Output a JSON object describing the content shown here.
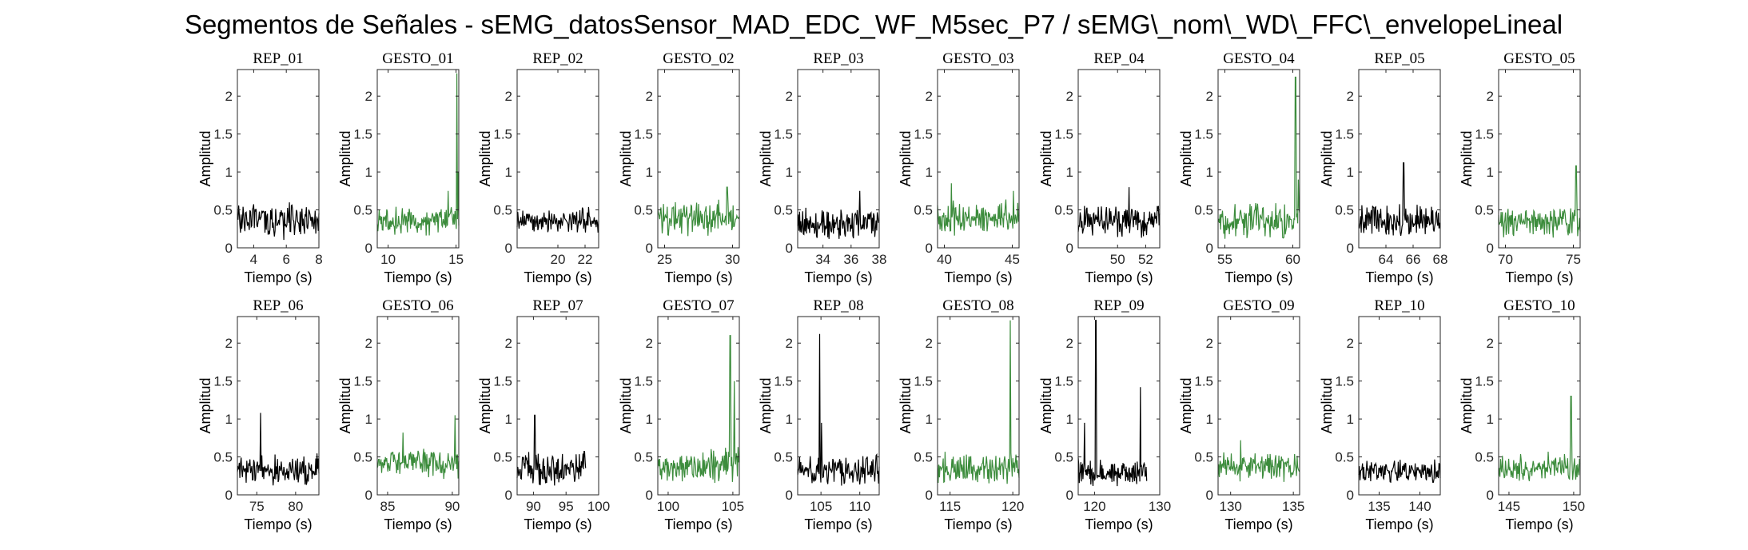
{
  "figure": {
    "title": "Segmentos de Señales - sEMG_datosSensor_MAD_EDC_WF_M5sec_P7 / sEMG\\_nom\\_WD\\_FFC\\_envelopeLineal"
  },
  "colors": {
    "rep": "#000000",
    "gesto": "#3c8c3c"
  },
  "chart_data": [
    {
      "type": "line",
      "title": "REP_01",
      "xlabel": "Tiempo (s)",
      "ylabel": "Amplitud",
      "xlim": [
        3,
        8
      ],
      "ylim": [
        0,
        2.35
      ],
      "xticks": [
        4,
        6,
        8
      ],
      "yticks": [
        0,
        0.5,
        1,
        1.5,
        2
      ],
      "series": [
        {
          "x": [
            3,
            8
          ],
          "amplitude_range": [
            0.1,
            0.6
          ],
          "spikes": [
            [
              6.2,
              0.6
            ]
          ]
        }
      ]
    },
    {
      "type": "line",
      "title": "GESTO_01",
      "xlabel": "Tiempo (s)",
      "ylabel": "Amplitud",
      "xlim": [
        9.2,
        15.2
      ],
      "ylim": [
        0,
        2.35
      ],
      "xticks": [
        10,
        15
      ],
      "yticks": [
        0,
        0.5,
        1,
        1.5,
        2
      ],
      "series": [
        {
          "x": [
            9.2,
            15.2
          ],
          "amplitude_range": [
            0.15,
            0.55
          ],
          "spikes": [
            [
              14.4,
              0.75
            ],
            [
              15.05,
              2.3
            ],
            [
              15.15,
              1.0
            ]
          ]
        }
      ]
    },
    {
      "type": "line",
      "title": "REP_02",
      "xlabel": "Tiempo (s)",
      "ylabel": "Amplitud",
      "xlim": [
        17,
        23
      ],
      "ylim": [
        0,
        2.35
      ],
      "xticks": [
        20,
        22
      ],
      "yticks": [
        0,
        0.5,
        1,
        1.5,
        2
      ],
      "series": [
        {
          "x": [
            17,
            23
          ],
          "amplitude_range": [
            0.15,
            0.55
          ],
          "spikes": []
        }
      ]
    },
    {
      "type": "line",
      "title": "GESTO_02",
      "xlabel": "Tiempo (s)",
      "ylabel": "Amplitud",
      "xlim": [
        24.5,
        30.5
      ],
      "ylim": [
        0,
        2.35
      ],
      "xticks": [
        25,
        30
      ],
      "yticks": [
        0,
        0.5,
        1,
        1.5,
        2
      ],
      "series": [
        {
          "x": [
            24.5,
            30.5
          ],
          "amplitude_range": [
            0.15,
            0.65
          ],
          "spikes": [
            [
              29.6,
              0.8
            ]
          ]
        }
      ]
    },
    {
      "type": "line",
      "title": "REP_03",
      "xlabel": "Tiempo (s)",
      "ylabel": "Amplitud",
      "xlim": [
        32.2,
        38
      ],
      "ylim": [
        0,
        2.35
      ],
      "xticks": [
        34,
        36,
        38
      ],
      "yticks": [
        0,
        0.5,
        1,
        1.5,
        2
      ],
      "series": [
        {
          "x": [
            32.2,
            38
          ],
          "amplitude_range": [
            0.1,
            0.55
          ],
          "spikes": [
            [
              36.6,
              0.75
            ]
          ]
        }
      ]
    },
    {
      "type": "line",
      "title": "GESTO_03",
      "xlabel": "Tiempo (s)",
      "ylabel": "Amplitud",
      "xlim": [
        39.5,
        45.5
      ],
      "ylim": [
        0,
        2.35
      ],
      "xticks": [
        40,
        45
      ],
      "yticks": [
        0,
        0.5,
        1,
        1.5,
        2
      ],
      "series": [
        {
          "x": [
            39.5,
            45.5
          ],
          "amplitude_range": [
            0.15,
            0.65
          ],
          "spikes": [
            [
              40.5,
              0.85
            ],
            [
              45.1,
              0.75
            ]
          ]
        }
      ]
    },
    {
      "type": "line",
      "title": "REP_04",
      "xlabel": "Tiempo (s)",
      "ylabel": "Amplitud",
      "xlim": [
        47.2,
        53
      ],
      "ylim": [
        0,
        2.35
      ],
      "xticks": [
        50,
        52
      ],
      "yticks": [
        0,
        0.5,
        1,
        1.5,
        2
      ],
      "series": [
        {
          "x": [
            47.2,
            53
          ],
          "amplitude_range": [
            0.1,
            0.6
          ],
          "spikes": [
            [
              50.8,
              0.8
            ]
          ]
        }
      ]
    },
    {
      "type": "line",
      "title": "GESTO_04",
      "xlabel": "Tiempo (s)",
      "ylabel": "Amplitud",
      "xlim": [
        54.5,
        60.5
      ],
      "ylim": [
        0,
        2.35
      ],
      "xticks": [
        55,
        60
      ],
      "yticks": [
        0,
        0.5,
        1,
        1.5,
        2
      ],
      "series": [
        {
          "x": [
            54.5,
            60.5
          ],
          "amplitude_range": [
            0.1,
            0.65
          ],
          "spikes": [
            [
              60.2,
              2.25
            ],
            [
              60.4,
              0.9
            ]
          ]
        }
      ]
    },
    {
      "type": "line",
      "title": "REP_05",
      "xlabel": "Tiempo (s)",
      "ylabel": "Amplitud",
      "xlim": [
        62,
        68
      ],
      "ylim": [
        0,
        2.35
      ],
      "xticks": [
        64,
        66,
        68
      ],
      "yticks": [
        0,
        0.5,
        1,
        1.5,
        2
      ],
      "series": [
        {
          "x": [
            62,
            68
          ],
          "amplitude_range": [
            0.1,
            0.6
          ],
          "spikes": [
            [
              65.3,
              1.12
            ]
          ]
        }
      ]
    },
    {
      "type": "line",
      "title": "GESTO_05",
      "xlabel": "Tiempo (s)",
      "ylabel": "Amplitud",
      "xlim": [
        69.5,
        75.5
      ],
      "ylim": [
        0,
        2.35
      ],
      "xticks": [
        70,
        75
      ],
      "yticks": [
        0,
        0.5,
        1,
        1.5,
        2
      ],
      "series": [
        {
          "x": [
            69.5,
            75.5
          ],
          "amplitude_range": [
            0.1,
            0.55
          ],
          "spikes": [
            [
              75.2,
              1.08
            ]
          ]
        }
      ]
    },
    {
      "type": "line",
      "title": "REP_06",
      "xlabel": "Tiempo (s)",
      "ylabel": "Amplitud",
      "xlim": [
        72.5,
        83
      ],
      "ylim": [
        0,
        2.35
      ],
      "xticks": [
        75,
        80
      ],
      "yticks": [
        0,
        0.5,
        1,
        1.5,
        2
      ],
      "series": [
        {
          "x": [
            72.5,
            83
          ],
          "amplitude_range": [
            0.1,
            0.55
          ],
          "spikes": [
            [
              75.5,
              1.08
            ]
          ]
        }
      ]
    },
    {
      "type": "line",
      "title": "GESTO_06",
      "xlabel": "Tiempo (s)",
      "ylabel": "Amplitud",
      "xlim": [
        84.2,
        90.5
      ],
      "ylim": [
        0,
        2.35
      ],
      "xticks": [
        85,
        90
      ],
      "yticks": [
        0,
        0.5,
        1,
        1.5,
        2
      ],
      "series": [
        {
          "x": [
            84.2,
            90.5
          ],
          "amplitude_range": [
            0.2,
            0.65
          ],
          "spikes": [
            [
              86.2,
              0.82
            ],
            [
              90.2,
              1.05
            ]
          ]
        }
      ]
    },
    {
      "type": "line",
      "title": "REP_07",
      "xlabel": "Tiempo (s)",
      "ylabel": "Amplitud",
      "xlim": [
        87.5,
        100
      ],
      "ylim": [
        0,
        2.35
      ],
      "xticks": [
        90,
        95,
        100
      ],
      "yticks": [
        0,
        0.5,
        1,
        1.5,
        2
      ],
      "series": [
        {
          "x": [
            87.5,
            98
          ],
          "amplitude_range": [
            0.1,
            0.6
          ],
          "spikes": [
            [
              90.2,
              1.05
            ]
          ]
        }
      ]
    },
    {
      "type": "line",
      "title": "GESTO_07",
      "xlabel": "Tiempo (s)",
      "ylabel": "Amplitud",
      "xlim": [
        99.2,
        105.5
      ],
      "ylim": [
        0,
        2.35
      ],
      "xticks": [
        100,
        105
      ],
      "yticks": [
        0,
        0.5,
        1,
        1.5,
        2
      ],
      "series": [
        {
          "x": [
            99.2,
            105.5
          ],
          "amplitude_range": [
            0.1,
            0.65
          ],
          "spikes": [
            [
              104.8,
              2.1
            ],
            [
              105.1,
              1.5
            ]
          ]
        }
      ]
    },
    {
      "type": "line",
      "title": "REP_08",
      "xlabel": "Tiempo (s)",
      "ylabel": "Amplitud",
      "xlim": [
        102,
        112.5
      ],
      "ylim": [
        0,
        2.35
      ],
      "xticks": [
        105,
        110
      ],
      "yticks": [
        0,
        0.5,
        1,
        1.5,
        2
      ],
      "series": [
        {
          "x": [
            102,
            112.5
          ],
          "amplitude_range": [
            0.1,
            0.55
          ],
          "spikes": [
            [
              104.8,
              2.12
            ],
            [
              105.1,
              0.95
            ]
          ]
        }
      ]
    },
    {
      "type": "line",
      "title": "GESTO_08",
      "xlabel": "Tiempo (s)",
      "ylabel": "Amplitud",
      "xlim": [
        114,
        120.5
      ],
      "ylim": [
        0,
        2.35
      ],
      "xticks": [
        115,
        120
      ],
      "yticks": [
        0,
        0.5,
        1,
        1.5,
        2
      ],
      "series": [
        {
          "x": [
            114,
            120.5
          ],
          "amplitude_range": [
            0.1,
            0.6
          ],
          "spikes": [
            [
              119.8,
              2.3
            ]
          ]
        }
      ]
    },
    {
      "type": "line",
      "title": "REP_09",
      "xlabel": "Tiempo (s)",
      "ylabel": "Amplitud",
      "xlim": [
        117.5,
        130
      ],
      "ylim": [
        0,
        2.35
      ],
      "xticks": [
        120,
        130
      ],
      "yticks": [
        0,
        0.5,
        1,
        1.5,
        2
      ],
      "series": [
        {
          "x": [
            117.5,
            128
          ],
          "amplitude_range": [
            0.1,
            0.5
          ],
          "spikes": [
            [
              118.5,
              0.95
            ],
            [
              120.2,
              2.3
            ],
            [
              127,
              1.42
            ]
          ]
        }
      ]
    },
    {
      "type": "line",
      "title": "GESTO_09",
      "xlabel": "Tiempo (s)",
      "ylabel": "Amplitud",
      "xlim": [
        129,
        135.5
      ],
      "ylim": [
        0,
        2.35
      ],
      "xticks": [
        130,
        135
      ],
      "yticks": [
        0,
        0.5,
        1,
        1.5,
        2
      ],
      "series": [
        {
          "x": [
            129,
            135.5
          ],
          "amplitude_range": [
            0.15,
            0.6
          ],
          "spikes": [
            [
              130.8,
              0.72
            ]
          ]
        }
      ]
    },
    {
      "type": "line",
      "title": "REP_10",
      "xlabel": "Tiempo (s)",
      "ylabel": "Amplitud",
      "xlim": [
        132.5,
        142.5
      ],
      "ylim": [
        0,
        2.35
      ],
      "xticks": [
        135,
        140
      ],
      "yticks": [
        0,
        0.5,
        1,
        1.5,
        2
      ],
      "series": [
        {
          "x": [
            132.5,
            142.5
          ],
          "amplitude_range": [
            0.1,
            0.5
          ],
          "spikes": []
        }
      ]
    },
    {
      "type": "line",
      "title": "GESTO_10",
      "xlabel": "Tiempo (s)",
      "ylabel": "Amplitud",
      "xlim": [
        144.2,
        150.5
      ],
      "ylim": [
        0,
        2.35
      ],
      "xticks": [
        145,
        150
      ],
      "yticks": [
        0,
        0.5,
        1,
        1.5,
        2
      ],
      "series": [
        {
          "x": [
            144.2,
            150.5
          ],
          "amplitude_range": [
            0.1,
            0.6
          ],
          "spikes": [
            [
              149.8,
              1.3
            ]
          ]
        }
      ]
    }
  ]
}
